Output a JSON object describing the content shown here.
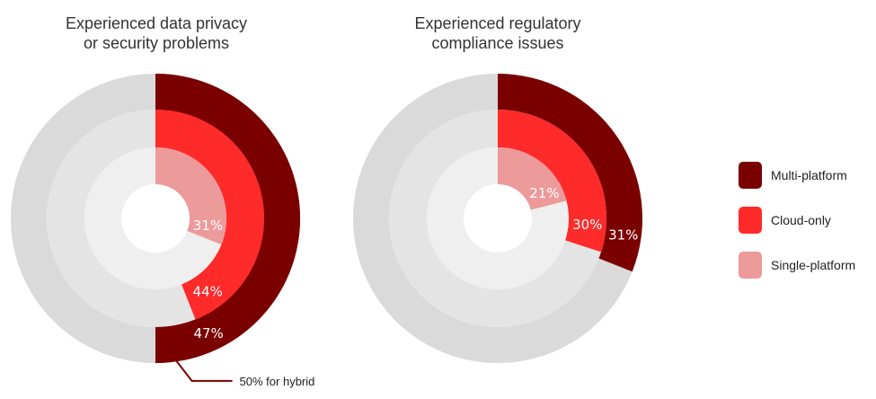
{
  "colors": {
    "multi": "#7a0000",
    "cloud": "#ff2a2a",
    "single": "#ec9a9a",
    "track_outer": "#dadada",
    "track_mid": "#e4e4e4",
    "track_inner": "#efefef"
  },
  "chart_data": [
    {
      "type": "radial-bar",
      "title": [
        "Experienced data privacy",
        "or security problems"
      ],
      "series": [
        {
          "name": "Multi-platform",
          "value": 47,
          "label": "47%"
        },
        {
          "name": "Cloud-only",
          "value": 44,
          "label": "44%"
        },
        {
          "name": "Single-platform",
          "value": 31,
          "label": "31%"
        }
      ],
      "annotation": {
        "value": 50,
        "label": "50% for hybrid"
      }
    },
    {
      "type": "radial-bar",
      "title": [
        "Experienced regulatory",
        "compliance issues"
      ],
      "series": [
        {
          "name": "Multi-platform",
          "value": 31,
          "label": "31%"
        },
        {
          "name": "Cloud-only",
          "value": 30,
          "label": "30%"
        },
        {
          "name": "Single-platform",
          "value": 21,
          "label": "21%"
        }
      ]
    }
  ],
  "legend": [
    {
      "label": "Multi-platform",
      "color": "#7a0000"
    },
    {
      "label": "Cloud-only",
      "color": "#ff2a2a"
    },
    {
      "label": "Single-platform",
      "color": "#ec9a9a"
    }
  ]
}
